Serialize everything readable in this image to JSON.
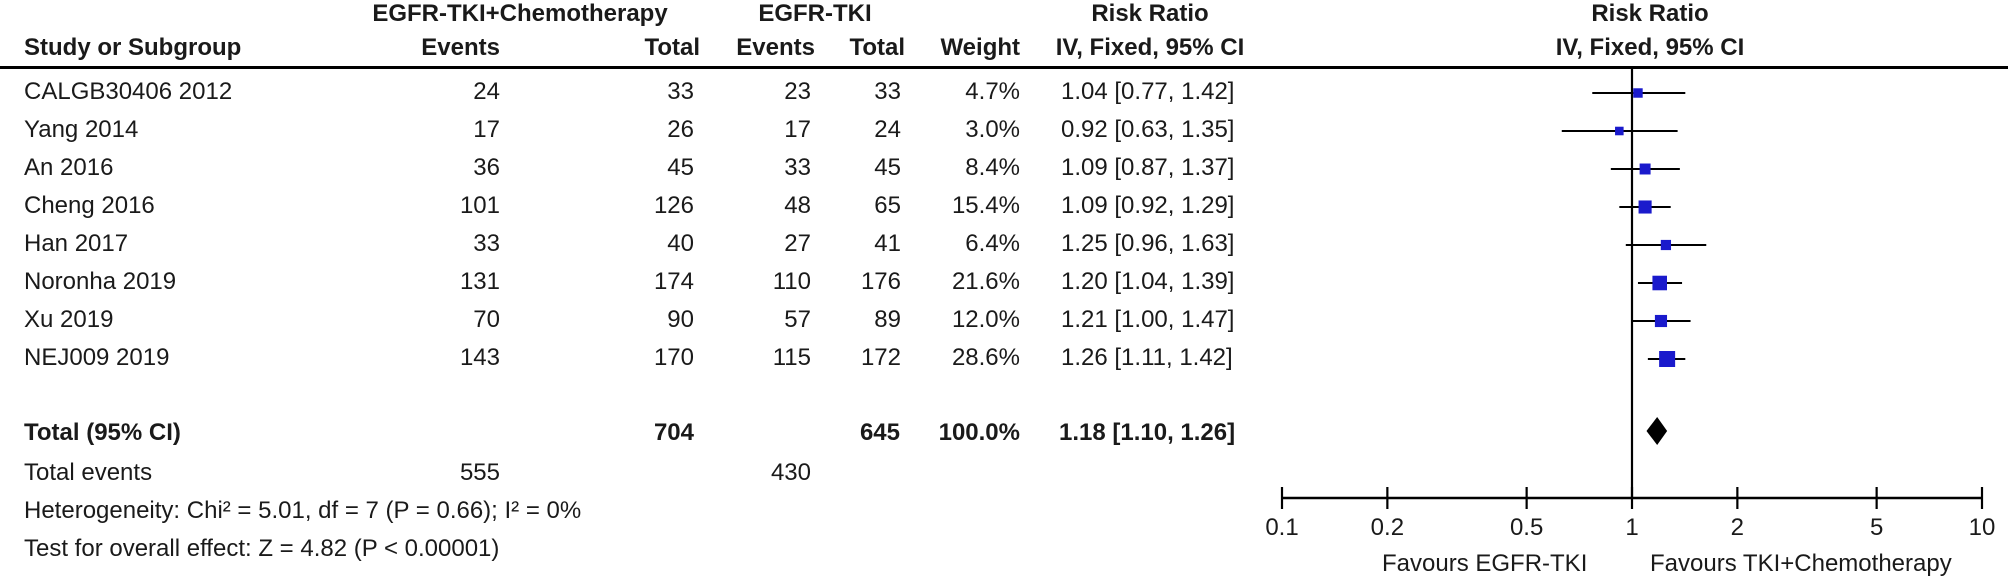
{
  "header": {
    "group1": "EGFR-TKI+Chemotherapy",
    "group2": "EGFR-TKI",
    "rr_label": "Risk Ratio",
    "rr_method": "IV, Fixed, 95% CI",
    "plot_title": "Risk Ratio",
    "plot_method": "IV, Fixed, 95% CI",
    "col_study": "Study or Subgroup",
    "col_events1": "Events",
    "col_total1": "Total",
    "col_events2": "Events",
    "col_total2": "Total",
    "col_weight": "Weight"
  },
  "studies": [
    {
      "name": "CALGB30406 2012",
      "events1": "24",
      "total1": "33",
      "events2": "23",
      "total2": "33",
      "weight": "4.7%",
      "ci_text": "1.04 [0.77, 1.42]"
    },
    {
      "name": "Yang 2014",
      "events1": "17",
      "total1": "26",
      "events2": "17",
      "total2": "24",
      "weight": "3.0%",
      "ci_text": "0.92 [0.63, 1.35]"
    },
    {
      "name": "An 2016",
      "events1": "36",
      "total1": "45",
      "events2": "33",
      "total2": "45",
      "weight": "8.4%",
      "ci_text": "1.09 [0.87, 1.37]"
    },
    {
      "name": "Cheng 2016",
      "events1": "101",
      "total1": "126",
      "events2": "48",
      "total2": "65",
      "weight": "15.4%",
      "ci_text": "1.09 [0.92, 1.29]"
    },
    {
      "name": "Han 2017",
      "events1": "33",
      "total1": "40",
      "events2": "27",
      "total2": "41",
      "weight": "6.4%",
      "ci_text": "1.25 [0.96, 1.63]"
    },
    {
      "name": "Noronha 2019",
      "events1": "131",
      "total1": "174",
      "events2": "110",
      "total2": "176",
      "weight": "21.6%",
      "ci_text": "1.20 [1.04, 1.39]"
    },
    {
      "name": "Xu 2019",
      "events1": "70",
      "total1": "90",
      "events2": "57",
      "total2": "89",
      "weight": "12.0%",
      "ci_text": "1.21 [1.00, 1.47]"
    },
    {
      "name": "NEJ009 2019",
      "events1": "143",
      "total1": "170",
      "events2": "115",
      "total2": "172",
      "weight": "28.6%",
      "ci_text": "1.26 [1.11, 1.42]"
    }
  ],
  "total": {
    "label": "Total (95% CI)",
    "total1": "704",
    "total2": "645",
    "weight": "100.0%",
    "ci_text": "1.18 [1.10, 1.26]"
  },
  "total_events": {
    "label": "Total events",
    "events1": "555",
    "events2": "430"
  },
  "heterogeneity": "Heterogeneity: Chi² = 5.01, df = 7 (P = 0.66); I² = 0%",
  "overall_effect": "Test for overall effect: Z = 4.82 (P < 0.00001)",
  "favours_left": "Favours EGFR-TKI",
  "favours_right": "Favours TKI+Chemotherapy",
  "colors": {
    "study_marker": "#1a1acc",
    "diamond": "#000000",
    "line": "#000000"
  },
  "chart_data": {
    "type": "forest",
    "scale": "log",
    "xlim": [
      0.1,
      10
    ],
    "ticks": [
      0.1,
      0.2,
      0.5,
      1,
      2,
      5,
      10
    ],
    "tick_labels": [
      "0.1",
      "0.2",
      "0.5",
      "1",
      "2",
      "5",
      "10"
    ],
    "null_line": 1,
    "points": [
      {
        "study": "CALGB30406 2012",
        "rr": 1.04,
        "lo": 0.77,
        "hi": 1.42,
        "weight": 4.7
      },
      {
        "study": "Yang 2014",
        "rr": 0.92,
        "lo": 0.63,
        "hi": 1.35,
        "weight": 3.0
      },
      {
        "study": "An 2016",
        "rr": 1.09,
        "lo": 0.87,
        "hi": 1.37,
        "weight": 8.4
      },
      {
        "study": "Cheng 2016",
        "rr": 1.09,
        "lo": 0.92,
        "hi": 1.29,
        "weight": 15.4
      },
      {
        "study": "Han 2017",
        "rr": 1.25,
        "lo": 0.96,
        "hi": 1.63,
        "weight": 6.4
      },
      {
        "study": "Noronha 2019",
        "rr": 1.2,
        "lo": 1.04,
        "hi": 1.39,
        "weight": 21.6
      },
      {
        "study": "Xu 2019",
        "rr": 1.21,
        "lo": 1.0,
        "hi": 1.47,
        "weight": 12.0
      },
      {
        "study": "NEJ009 2019",
        "rr": 1.26,
        "lo": 1.11,
        "hi": 1.42,
        "weight": 28.6
      }
    ],
    "pooled": {
      "rr": 1.18,
      "lo": 1.1,
      "hi": 1.26
    }
  }
}
